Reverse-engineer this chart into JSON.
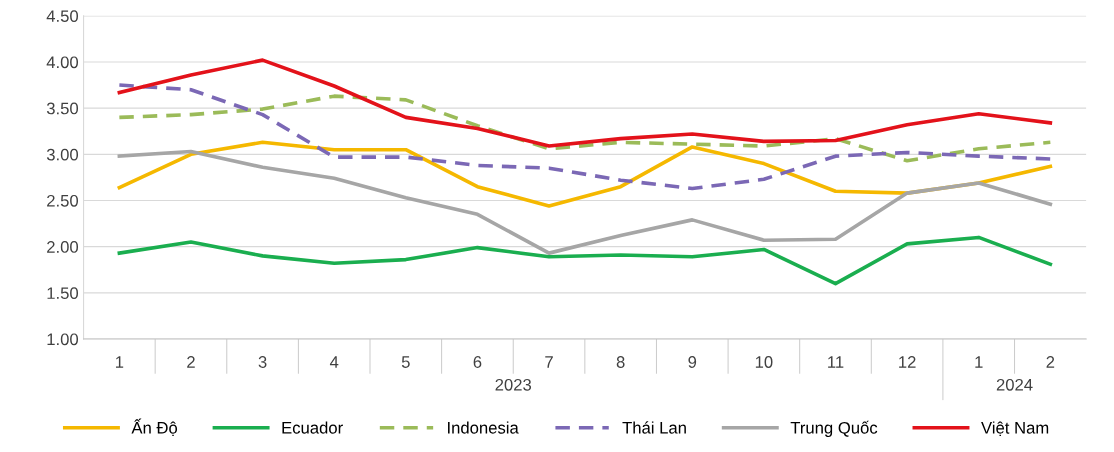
{
  "chart_data": {
    "type": "line",
    "categories": [
      "1",
      "2",
      "3",
      "4",
      "5",
      "6",
      "7",
      "8",
      "9",
      "10",
      "11",
      "12",
      "1",
      "2"
    ],
    "annotations": [
      "2023",
      "2024"
    ],
    "series": [
      {
        "name": "Ấn Độ",
        "color": "#f5b800",
        "values": [
          2.64,
          3.0,
          3.13,
          3.05,
          3.05,
          2.65,
          2.44,
          2.65,
          3.08,
          2.9,
          2.6,
          2.58,
          2.69,
          2.87
        ]
      },
      {
        "name": "Ecuador",
        "color": "#1aae4f",
        "values": [
          1.93,
          2.05,
          1.9,
          1.82,
          1.86,
          1.99,
          1.89,
          1.91,
          1.89,
          1.97,
          1.6,
          2.03,
          2.1,
          1.81
        ]
      },
      {
        "name": "Indonesia",
        "color": "#9bbb59",
        "line_style": "dashed",
        "values": [
          3.4,
          3.43,
          3.49,
          3.63,
          3.59,
          3.31,
          3.06,
          3.13,
          3.11,
          3.09,
          3.17,
          2.93,
          3.06,
          3.13
        ]
      },
      {
        "name": "Thái Lan",
        "color": "#7b68b5",
        "line_style": "dashed",
        "values": [
          3.75,
          3.7,
          3.43,
          2.97,
          2.97,
          2.88,
          2.85,
          2.72,
          2.63,
          2.73,
          2.98,
          3.02,
          2.98,
          2.95
        ]
      },
      {
        "name": "Trung Quốc",
        "color": "#a6a6a6",
        "values": [
          2.98,
          3.03,
          2.86,
          2.74,
          2.53,
          2.35,
          1.93,
          2.12,
          2.29,
          2.07,
          2.08,
          2.58,
          2.69,
          2.46
        ]
      },
      {
        "name": "Việt Nam",
        "color": "#e3121a",
        "values": [
          3.67,
          3.86,
          4.02,
          3.74,
          3.4,
          3.28,
          3.09,
          3.17,
          3.22,
          3.14,
          3.15,
          3.32,
          3.44,
          3.34
        ]
      }
    ],
    "ylim": [
      1.0,
      4.5
    ],
    "yticks": [
      {
        "value": 1.0,
        "label": "1.00"
      },
      {
        "value": 1.5,
        "label": "1.50"
      },
      {
        "value": 2.0,
        "label": "2.00"
      },
      {
        "value": 2.5,
        "label": "2.50"
      },
      {
        "value": 3.0,
        "label": "3.00"
      },
      {
        "value": 3.5,
        "label": "3.50"
      },
      {
        "value": 4.0,
        "label": "4.00"
      },
      {
        "value": 4.5,
        "label": "4.50"
      }
    ],
    "grid": "y",
    "legend": "bottom",
    "marker": "none",
    "line_style": "solid"
  }
}
